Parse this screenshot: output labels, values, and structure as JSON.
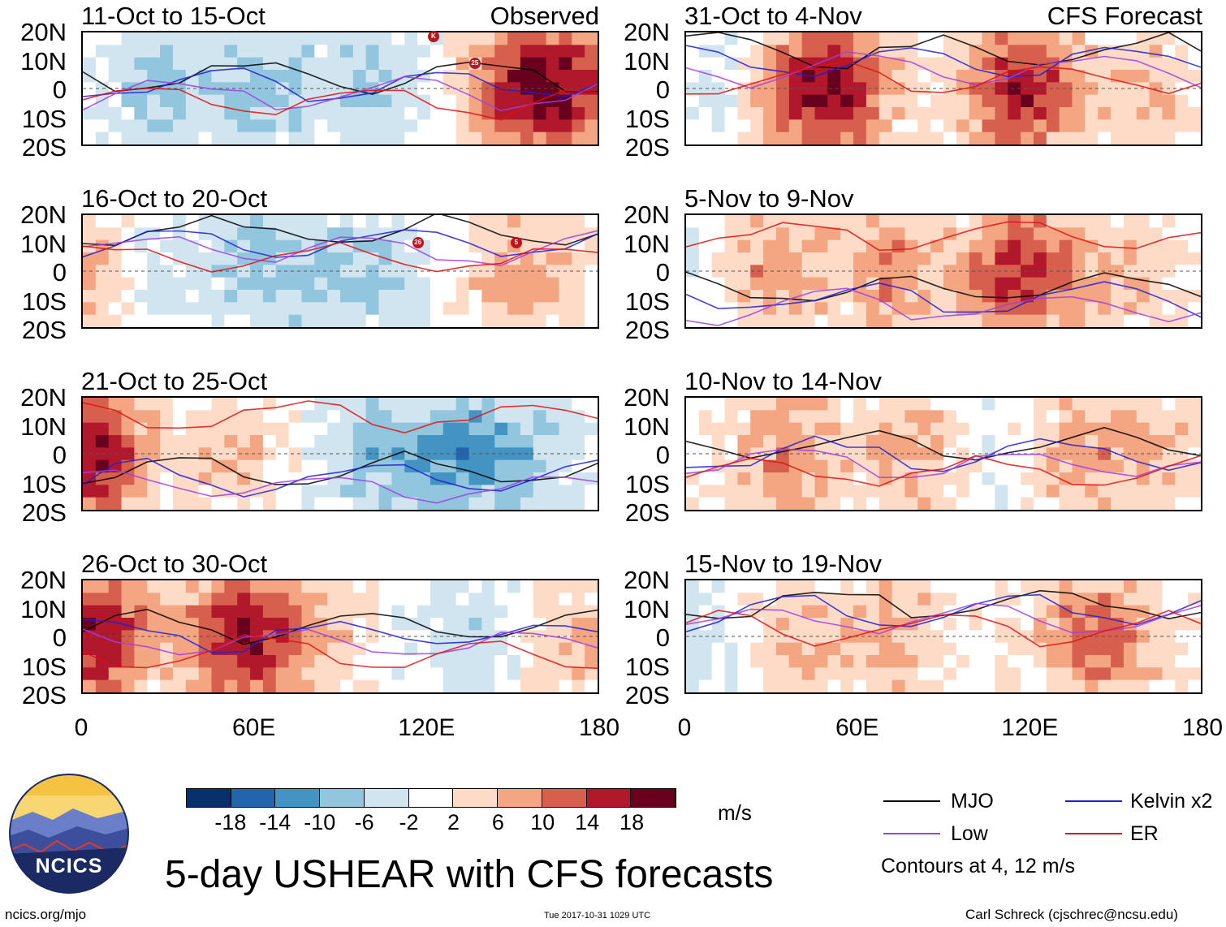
{
  "chart_data": {
    "type": "heatmap",
    "title": "5-day USHEAR with CFS forecasts",
    "variable": "USHEAR",
    "units": "m/s",
    "columns": [
      "Observed",
      "CFS Forecast"
    ],
    "lat_ticks": [
      "20N",
      "10N",
      "0",
      "10S",
      "20S"
    ],
    "lon_ticks": [
      "0",
      "60E",
      "120E",
      "180"
    ],
    "lat_range": [
      -20,
      20
    ],
    "lon_range": [
      0,
      180
    ],
    "panels": [
      {
        "period": "11-Oct to 15-Oct",
        "source": "Observed"
      },
      {
        "period": "16-Oct to 20-Oct",
        "source": "Observed"
      },
      {
        "period": "21-Oct to 25-Oct",
        "source": "Observed"
      },
      {
        "period": "26-Oct to 30-Oct",
        "source": "Observed"
      },
      {
        "period": "31-Oct to 4-Nov",
        "source": "CFS Forecast"
      },
      {
        "period": "5-Nov to 9-Nov",
        "source": "CFS Forecast"
      },
      {
        "period": "10-Nov to 14-Nov",
        "source": "CFS Forecast"
      },
      {
        "period": "15-Nov to 19-Nov",
        "source": "CFS Forecast"
      }
    ],
    "colorbar": {
      "tick_labels": [
        "-18",
        "-14",
        "-10",
        "-6",
        "-2",
        "2",
        "6",
        "10",
        "14",
        "18"
      ],
      "colors": [
        "#08306b",
        "#2166ac",
        "#4393c3",
        "#92c5de",
        "#d1e5f0",
        "#ffffff",
        "#fddbc7",
        "#f4a582",
        "#d6604d",
        "#b2182b",
        "#67001f"
      ]
    },
    "contours": {
      "note": "Contours at 4, 12 m/s",
      "levels": [
        4,
        12
      ],
      "legend": [
        {
          "name": "MJO",
          "color": "#000000"
        },
        {
          "name": "Kelvin x2",
          "color": "#1f1fd6"
        },
        {
          "name": "Low",
          "color": "#a040e0"
        },
        {
          "name": "ER",
          "color": "#e01010"
        }
      ]
    },
    "cyclone_markers": [
      "K",
      "25",
      "26",
      "5"
    ]
  },
  "branding": {
    "logo_text": "NCICS",
    "url": "ncics.org/mjo",
    "timestamp": "Tue 2017-10-31 1029 UTC",
    "author": "Carl Schreck (cjschrec@ncsu.edu)"
  }
}
